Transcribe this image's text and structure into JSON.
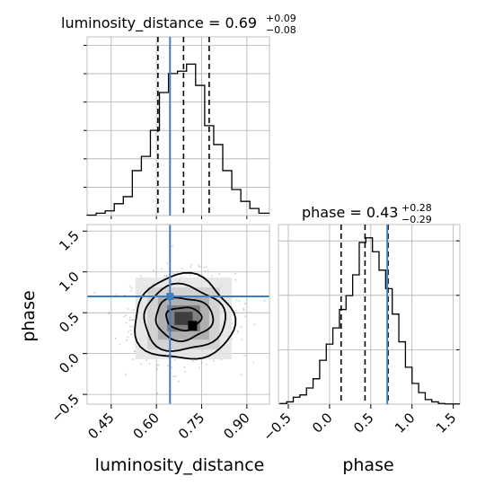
{
  "chart_data": {
    "type": "corner",
    "parameters": [
      "luminosity_distance",
      "phase"
    ],
    "true_values": {
      "luminosity_distance": 0.645,
      "phase": 0.7
    },
    "colors": {
      "truth": "#3f7fbf",
      "hist": "#000000",
      "grid": "#b0b0b0",
      "frame": "#bfbfbf",
      "points": "#888888"
    },
    "titles": {
      "luminosity_distance": {
        "label": "luminosity_distance = 0.69",
        "plus": "+0.09",
        "minus": "−0.08"
      },
      "phase": {
        "label": "phase = 0.43",
        "plus": "+0.28",
        "minus": "−0.29"
      }
    },
    "axis_labels": {
      "luminosity_distance": "luminosity_distance",
      "phase": "phase"
    },
    "luminosity_distance": {
      "range": [
        0.37,
        0.975
      ],
      "ticks": [
        0.45,
        0.6,
        0.75,
        0.9
      ],
      "tick_labels": [
        "0.45",
        "0.60",
        "0.75",
        "0.90"
      ],
      "quantiles": [
        0.605,
        0.69,
        0.775
      ],
      "hist_bins": [
        0.37,
        0.4,
        0.43,
        0.46,
        0.49,
        0.52,
        0.55,
        0.58,
        0.61,
        0.64,
        0.67,
        0.7,
        0.73,
        0.76,
        0.79,
        0.82,
        0.85,
        0.88,
        0.91,
        0.94,
        0.975
      ],
      "hist_counts": [
        0.2,
        1,
        2,
        5,
        8,
        19,
        25,
        36,
        52,
        60,
        61,
        64,
        55,
        38,
        30,
        19,
        11,
        6,
        3,
        1
      ]
    },
    "phase": {
      "range": [
        -0.62,
        1.58
      ],
      "ticks": [
        -0.5,
        0.0,
        0.5,
        1.0,
        1.5
      ],
      "tick_labels": [
        "−0.5",
        "0.0",
        "0.5",
        "1.0",
        "1.5"
      ],
      "quantiles": [
        0.14,
        0.43,
        0.71
      ],
      "hist_bins": [
        -0.6,
        -0.52,
        -0.44,
        -0.36,
        -0.28,
        -0.2,
        -0.12,
        -0.04,
        0.04,
        0.12,
        0.2,
        0.28,
        0.36,
        0.44,
        0.52,
        0.6,
        0.68,
        0.76,
        0.84,
        0.92,
        1.0,
        1.08,
        1.16,
        1.24,
        1.32,
        1.4,
        1.58
      ],
      "hist_counts": [
        0.3,
        1,
        3,
        4,
        7,
        11,
        19,
        26,
        33,
        41,
        47,
        56,
        70,
        72,
        66,
        58,
        50,
        39,
        27,
        16,
        9,
        5,
        2,
        1,
        0.3,
        0.1
      ]
    },
    "density_2d": {
      "centers": [
        0.69,
        0.43
      ],
      "contour_levels": [
        {
          "lum_halfwidth": 0.058,
          "phase_halfwidth": 0.14
        },
        {
          "lum_halfwidth": 0.095,
          "phase_halfwidth": 0.26
        },
        {
          "lum_halfwidth": 0.135,
          "phase_halfwidth": 0.4
        },
        {
          "lum_halfwidth": 0.165,
          "phase_halfwidth": 0.52
        }
      ]
    }
  }
}
